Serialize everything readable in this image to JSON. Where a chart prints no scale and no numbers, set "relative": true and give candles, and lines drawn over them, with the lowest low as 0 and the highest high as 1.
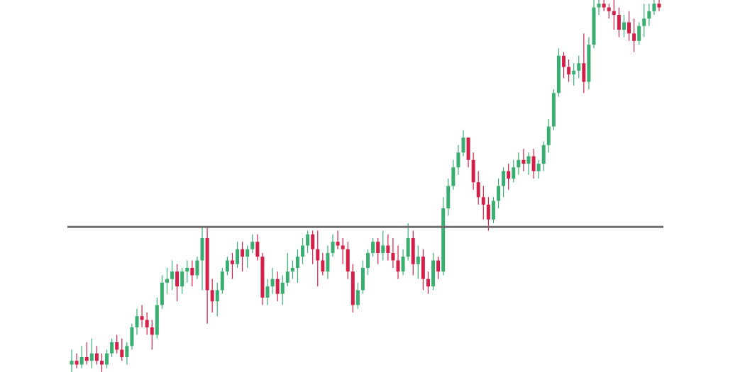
{
  "chart_data": {
    "type": "candlestick",
    "relative": true,
    "categories": [
      null,
      null,
      null,
      null,
      null,
      null,
      null,
      null,
      null,
      null,
      null,
      null,
      null,
      null,
      null,
      null,
      null,
      null,
      null,
      null,
      null,
      null,
      null,
      null,
      null,
      null,
      null,
      null,
      null,
      null,
      null,
      null,
      null,
      null,
      null,
      null,
      null,
      null,
      null,
      null,
      null,
      null,
      null,
      null,
      null,
      null,
      null,
      null,
      null,
      null,
      null,
      null,
      null,
      null,
      null,
      null,
      null,
      null,
      null,
      null,
      null,
      null,
      null,
      null,
      null,
      null,
      null,
      null,
      null,
      null,
      null,
      null,
      null,
      null,
      null,
      null,
      null,
      null,
      null,
      null,
      null,
      null,
      null,
      null,
      null,
      null,
      null,
      null,
      null,
      null,
      null,
      null,
      null,
      null,
      null,
      null,
      null,
      null,
      null,
      null,
      null,
      null,
      null,
      null,
      null,
      null,
      null,
      null,
      null,
      null,
      null,
      null,
      null,
      null,
      null,
      null,
      null,
      null
    ],
    "ohlc": [
      [
        0.02,
        0.06,
        0.0,
        0.03
      ],
      [
        0.03,
        0.05,
        0.01,
        0.02
      ],
      [
        0.02,
        0.07,
        0.01,
        0.04
      ],
      [
        0.04,
        0.08,
        0.02,
        0.03
      ],
      [
        0.03,
        0.09,
        0.01,
        0.05
      ],
      [
        0.05,
        0.07,
        0.02,
        0.03
      ],
      [
        0.03,
        0.05,
        0.0,
        0.02
      ],
      [
        0.02,
        0.06,
        0.01,
        0.05
      ],
      [
        0.05,
        0.09,
        0.04,
        0.08
      ],
      [
        0.08,
        0.1,
        0.05,
        0.06
      ],
      [
        0.06,
        0.09,
        0.03,
        0.04
      ],
      [
        0.04,
        0.08,
        0.02,
        0.07
      ],
      [
        0.07,
        0.13,
        0.06,
        0.12
      ],
      [
        0.12,
        0.17,
        0.1,
        0.15
      ],
      [
        0.15,
        0.18,
        0.12,
        0.14
      ],
      [
        0.14,
        0.16,
        0.1,
        0.12
      ],
      [
        0.12,
        0.14,
        0.06,
        0.1
      ],
      [
        0.1,
        0.2,
        0.09,
        0.18
      ],
      [
        0.18,
        0.26,
        0.17,
        0.24
      ],
      [
        0.24,
        0.28,
        0.21,
        0.25
      ],
      [
        0.25,
        0.3,
        0.22,
        0.27
      ],
      [
        0.27,
        0.29,
        0.19,
        0.23
      ],
      [
        0.23,
        0.28,
        0.21,
        0.27
      ],
      [
        0.27,
        0.3,
        0.24,
        0.28
      ],
      [
        0.28,
        0.3,
        0.23,
        0.26
      ],
      [
        0.26,
        0.31,
        0.25,
        0.3
      ],
      [
        0.3,
        0.39,
        0.22,
        0.36
      ],
      [
        0.36,
        0.39,
        0.13,
        0.22
      ],
      [
        0.22,
        0.25,
        0.16,
        0.19
      ],
      [
        0.19,
        0.24,
        0.15,
        0.22
      ],
      [
        0.22,
        0.28,
        0.21,
        0.27
      ],
      [
        0.27,
        0.31,
        0.26,
        0.3
      ],
      [
        0.3,
        0.32,
        0.25,
        0.29
      ],
      [
        0.29,
        0.35,
        0.28,
        0.33
      ],
      [
        0.33,
        0.35,
        0.27,
        0.31
      ],
      [
        0.31,
        0.34,
        0.28,
        0.33
      ],
      [
        0.33,
        0.37,
        0.32,
        0.35
      ],
      [
        0.35,
        0.37,
        0.3,
        0.31
      ],
      [
        0.31,
        0.32,
        0.18,
        0.2
      ],
      [
        0.2,
        0.25,
        0.18,
        0.23
      ],
      [
        0.23,
        0.28,
        0.21,
        0.25
      ],
      [
        0.25,
        0.27,
        0.19,
        0.21
      ],
      [
        0.21,
        0.26,
        0.18,
        0.24
      ],
      [
        0.24,
        0.32,
        0.23,
        0.27
      ],
      [
        0.27,
        0.3,
        0.25,
        0.28
      ],
      [
        0.28,
        0.33,
        0.24,
        0.31
      ],
      [
        0.31,
        0.36,
        0.29,
        0.34
      ],
      [
        0.34,
        0.38,
        0.32,
        0.37
      ],
      [
        0.37,
        0.38,
        0.29,
        0.33
      ],
      [
        0.33,
        0.38,
        0.23,
        0.3
      ],
      [
        0.3,
        0.32,
        0.26,
        0.27
      ],
      [
        0.27,
        0.34,
        0.25,
        0.32
      ],
      [
        0.32,
        0.37,
        0.31,
        0.35
      ],
      [
        0.35,
        0.38,
        0.33,
        0.34
      ],
      [
        0.34,
        0.36,
        0.29,
        0.33
      ],
      [
        0.33,
        0.35,
        0.25,
        0.27
      ],
      [
        0.27,
        0.29,
        0.16,
        0.18
      ],
      [
        0.18,
        0.24,
        0.17,
        0.22
      ],
      [
        0.22,
        0.3,
        0.21,
        0.28
      ],
      [
        0.28,
        0.33,
        0.26,
        0.32
      ],
      [
        0.32,
        0.36,
        0.31,
        0.35
      ],
      [
        0.35,
        0.36,
        0.29,
        0.32
      ],
      [
        0.32,
        0.38,
        0.3,
        0.34
      ],
      [
        0.34,
        0.37,
        0.3,
        0.32
      ],
      [
        0.32,
        0.36,
        0.28,
        0.3
      ],
      [
        0.3,
        0.34,
        0.25,
        0.27
      ],
      [
        0.27,
        0.33,
        0.26,
        0.31
      ],
      [
        0.31,
        0.4,
        0.3,
        0.36
      ],
      [
        0.36,
        0.38,
        0.26,
        0.29
      ],
      [
        0.29,
        0.34,
        0.25,
        0.31
      ],
      [
        0.31,
        0.33,
        0.22,
        0.25
      ],
      [
        0.25,
        0.27,
        0.21,
        0.23
      ],
      [
        0.23,
        0.32,
        0.22,
        0.3
      ],
      [
        0.3,
        0.31,
        0.25,
        0.27
      ],
      [
        0.27,
        0.47,
        0.26,
        0.44
      ],
      [
        0.44,
        0.52,
        0.42,
        0.5
      ],
      [
        0.5,
        0.57,
        0.49,
        0.55
      ],
      [
        0.55,
        0.61,
        0.53,
        0.59
      ],
      [
        0.59,
        0.65,
        0.58,
        0.63
      ],
      [
        0.63,
        0.63,
        0.55,
        0.57
      ],
      [
        0.57,
        0.59,
        0.49,
        0.51
      ],
      [
        0.51,
        0.54,
        0.45,
        0.47
      ],
      [
        0.47,
        0.5,
        0.41,
        0.45
      ],
      [
        0.45,
        0.47,
        0.38,
        0.41
      ],
      [
        0.41,
        0.47,
        0.4,
        0.46
      ],
      [
        0.46,
        0.52,
        0.44,
        0.5
      ],
      [
        0.5,
        0.55,
        0.47,
        0.54
      ],
      [
        0.54,
        0.56,
        0.49,
        0.52
      ],
      [
        0.52,
        0.57,
        0.51,
        0.55
      ],
      [
        0.55,
        0.59,
        0.53,
        0.57
      ],
      [
        0.57,
        0.6,
        0.54,
        0.56
      ],
      [
        0.56,
        0.59,
        0.53,
        0.58
      ],
      [
        0.58,
        0.6,
        0.52,
        0.54
      ],
      [
        0.54,
        0.57,
        0.52,
        0.56
      ],
      [
        0.56,
        0.62,
        0.54,
        0.61
      ],
      [
        0.61,
        0.68,
        0.59,
        0.66
      ],
      [
        0.66,
        0.76,
        0.65,
        0.75
      ],
      [
        0.75,
        0.87,
        0.74,
        0.85
      ],
      [
        0.85,
        0.86,
        0.79,
        0.82
      ],
      [
        0.82,
        0.84,
        0.78,
        0.8
      ],
      [
        0.8,
        0.83,
        0.77,
        0.81
      ],
      [
        0.81,
        0.85,
        0.79,
        0.83
      ],
      [
        0.83,
        0.91,
        0.75,
        0.78
      ],
      [
        0.78,
        0.9,
        0.76,
        0.88
      ],
      [
        0.88,
        1.0,
        0.87,
        0.98
      ],
      [
        0.98,
        1.0,
        0.96,
        0.99
      ],
      [
        0.99,
        1.0,
        0.97,
        0.98
      ],
      [
        0.98,
        0.99,
        0.95,
        0.97
      ],
      [
        0.97,
        1.0,
        0.92,
        0.96
      ],
      [
        0.96,
        0.98,
        0.9,
        0.92
      ],
      [
        0.92,
        0.96,
        0.9,
        0.94
      ],
      [
        0.94,
        0.97,
        0.89,
        0.91
      ],
      [
        0.91,
        0.95,
        0.86,
        0.89
      ],
      [
        0.89,
        0.94,
        0.88,
        0.93
      ],
      [
        0.93,
        0.99,
        0.9,
        0.95
      ],
      [
        0.95,
        0.99,
        0.93,
        0.97
      ],
      [
        0.97,
        1.0,
        0.96,
        0.99
      ],
      [
        0.99,
        1.0,
        0.97,
        0.98
      ]
    ],
    "colors": [
      "#3aae70",
      "#d22048",
      "#3aae70",
      "#d22048",
      "#3aae70",
      "#d22048",
      "#d22048",
      "#3aae70",
      "#3aae70",
      "#d22048",
      "#d22048",
      "#3aae70",
      "#3aae70",
      "#3aae70",
      "#d22048",
      "#d22048",
      "#d22048",
      "#3aae70",
      "#3aae70",
      "#3aae70",
      "#3aae70",
      "#d22048",
      "#3aae70",
      "#3aae70",
      "#d22048",
      "#3aae70",
      "#3aae70",
      "#d22048",
      "#d22048",
      "#3aae70",
      "#3aae70",
      "#3aae70",
      "#d22048",
      "#3aae70",
      "#d22048",
      "#3aae70",
      "#3aae70",
      "#d22048",
      "#d22048",
      "#3aae70",
      "#3aae70",
      "#d22048",
      "#3aae70",
      "#3aae70",
      "#3aae70",
      "#3aae70",
      "#3aae70",
      "#3aae70",
      "#d22048",
      "#d22048",
      "#d22048",
      "#3aae70",
      "#3aae70",
      "#d22048",
      "#d22048",
      "#d22048",
      "#d22048",
      "#3aae70",
      "#3aae70",
      "#3aae70",
      "#3aae70",
      "#d22048",
      "#3aae70",
      "#d22048",
      "#d22048",
      "#d22048",
      "#3aae70",
      "#3aae70",
      "#d22048",
      "#3aae70",
      "#d22048",
      "#d22048",
      "#3aae70",
      "#d22048",
      "#3aae70",
      "#3aae70",
      "#3aae70",
      "#3aae70",
      "#3aae70",
      "#d22048",
      "#d22048",
      "#d22048",
      "#d22048",
      "#d22048",
      "#3aae70",
      "#3aae70",
      "#3aae70",
      "#d22048",
      "#3aae70",
      "#3aae70",
      "#d22048",
      "#3aae70",
      "#d22048",
      "#3aae70",
      "#3aae70",
      "#3aae70",
      "#3aae70",
      "#3aae70",
      "#d22048",
      "#d22048",
      "#3aae70",
      "#3aae70",
      "#d22048",
      "#3aae70",
      "#3aae70",
      "#3aae70",
      "#d22048",
      "#d22048",
      "#d22048",
      "#d22048",
      "#3aae70",
      "#d22048",
      "#d22048",
      "#3aae70",
      "#3aae70",
      "#3aae70",
      "#3aae70",
      "#d22048"
    ],
    "ref_lines": [
      {
        "axis": "y",
        "value": 0.39,
        "color": "#6e6e6e"
      }
    ]
  }
}
